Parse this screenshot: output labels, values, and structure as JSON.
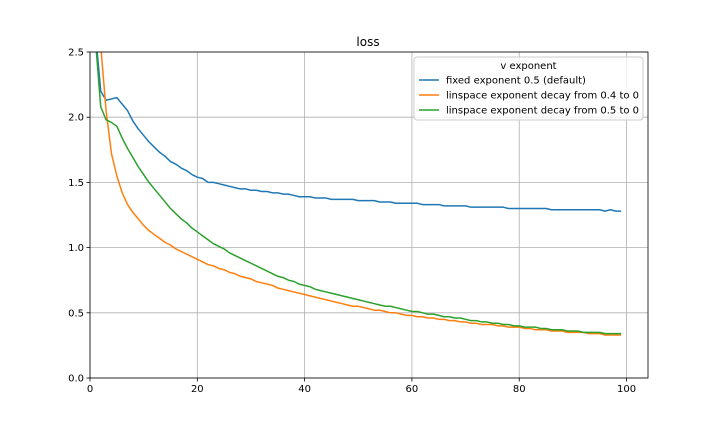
{
  "chart_data": {
    "type": "line",
    "title": "loss",
    "xlabel": "",
    "ylabel": "",
    "xlim": [
      0,
      104
    ],
    "ylim": [
      0,
      2.5
    ],
    "x_ticks": [
      "0",
      "20",
      "40",
      "60",
      "80",
      "100"
    ],
    "y_ticks": [
      "0.0",
      "0.5",
      "1.0",
      "1.5",
      "2.0",
      "2.5"
    ],
    "grid": true,
    "legend": {
      "title": "v exponent",
      "placement": "top-right"
    },
    "x": [
      1,
      2,
      3,
      4,
      5,
      6,
      7,
      8,
      9,
      10,
      11,
      12,
      13,
      14,
      15,
      16,
      17,
      18,
      19,
      20,
      21,
      22,
      23,
      24,
      25,
      26,
      27,
      28,
      29,
      30,
      31,
      32,
      33,
      34,
      35,
      36,
      37,
      38,
      39,
      40,
      41,
      42,
      43,
      44,
      45,
      46,
      47,
      48,
      49,
      50,
      51,
      52,
      53,
      54,
      55,
      56,
      57,
      58,
      59,
      60,
      61,
      62,
      63,
      64,
      65,
      66,
      67,
      68,
      69,
      70,
      71,
      72,
      73,
      74,
      75,
      76,
      77,
      78,
      79,
      80,
      81,
      82,
      83,
      84,
      85,
      86,
      87,
      88,
      89,
      90,
      91,
      92,
      93,
      94,
      95,
      96,
      97,
      98,
      99
    ],
    "series": [
      {
        "name": "fixed exponent 0.5 (default)",
        "color": "#1f77b4",
        "values": [
          2.65,
          2.2,
          2.13,
          2.14,
          2.15,
          2.1,
          2.05,
          1.97,
          1.91,
          1.86,
          1.81,
          1.77,
          1.73,
          1.7,
          1.66,
          1.64,
          1.61,
          1.59,
          1.56,
          1.54,
          1.53,
          1.5,
          1.5,
          1.49,
          1.48,
          1.47,
          1.46,
          1.45,
          1.45,
          1.44,
          1.44,
          1.43,
          1.43,
          1.42,
          1.42,
          1.41,
          1.41,
          1.4,
          1.39,
          1.39,
          1.39,
          1.38,
          1.38,
          1.38,
          1.37,
          1.37,
          1.37,
          1.37,
          1.37,
          1.36,
          1.36,
          1.36,
          1.36,
          1.35,
          1.35,
          1.35,
          1.34,
          1.34,
          1.34,
          1.34,
          1.34,
          1.33,
          1.33,
          1.33,
          1.33,
          1.32,
          1.32,
          1.32,
          1.32,
          1.32,
          1.31,
          1.31,
          1.31,
          1.31,
          1.31,
          1.31,
          1.31,
          1.3,
          1.3,
          1.3,
          1.3,
          1.3,
          1.3,
          1.3,
          1.3,
          1.29,
          1.29,
          1.29,
          1.29,
          1.29,
          1.29,
          1.29,
          1.29,
          1.29,
          1.29,
          1.28,
          1.29,
          1.28,
          1.28
        ]
      },
      {
        "name": "linspace exponent decay from 0.4 to 0",
        "color": "#ff7f0e",
        "values": [
          3.2,
          2.55,
          2.05,
          1.72,
          1.55,
          1.42,
          1.33,
          1.27,
          1.22,
          1.17,
          1.13,
          1.1,
          1.07,
          1.04,
          1.02,
          0.99,
          0.97,
          0.95,
          0.93,
          0.91,
          0.89,
          0.87,
          0.86,
          0.84,
          0.83,
          0.81,
          0.8,
          0.78,
          0.77,
          0.76,
          0.74,
          0.73,
          0.72,
          0.71,
          0.69,
          0.68,
          0.67,
          0.66,
          0.65,
          0.64,
          0.63,
          0.62,
          0.61,
          0.6,
          0.59,
          0.58,
          0.57,
          0.56,
          0.55,
          0.55,
          0.54,
          0.53,
          0.52,
          0.52,
          0.51,
          0.5,
          0.5,
          0.49,
          0.48,
          0.48,
          0.47,
          0.47,
          0.46,
          0.46,
          0.45,
          0.45,
          0.44,
          0.44,
          0.43,
          0.43,
          0.42,
          0.42,
          0.41,
          0.41,
          0.41,
          0.4,
          0.4,
          0.39,
          0.39,
          0.39,
          0.38,
          0.38,
          0.37,
          0.37,
          0.37,
          0.36,
          0.36,
          0.36,
          0.35,
          0.35,
          0.35,
          0.35,
          0.34,
          0.34,
          0.34,
          0.33,
          0.33,
          0.33,
          0.33
        ]
      },
      {
        "name": "linspace exponent decay from 0.5 to 0",
        "color": "#2ca02c",
        "values": [
          2.6,
          2.08,
          1.98,
          1.96,
          1.93,
          1.84,
          1.76,
          1.69,
          1.62,
          1.56,
          1.5,
          1.45,
          1.4,
          1.35,
          1.3,
          1.26,
          1.22,
          1.19,
          1.15,
          1.12,
          1.09,
          1.06,
          1.03,
          1.01,
          0.99,
          0.96,
          0.94,
          0.92,
          0.9,
          0.88,
          0.86,
          0.84,
          0.82,
          0.8,
          0.78,
          0.77,
          0.75,
          0.74,
          0.72,
          0.71,
          0.7,
          0.68,
          0.67,
          0.66,
          0.65,
          0.64,
          0.63,
          0.62,
          0.61,
          0.6,
          0.59,
          0.58,
          0.57,
          0.56,
          0.55,
          0.55,
          0.54,
          0.53,
          0.52,
          0.51,
          0.51,
          0.5,
          0.49,
          0.49,
          0.48,
          0.47,
          0.47,
          0.46,
          0.46,
          0.45,
          0.44,
          0.44,
          0.43,
          0.43,
          0.42,
          0.42,
          0.41,
          0.41,
          0.4,
          0.4,
          0.39,
          0.39,
          0.39,
          0.38,
          0.38,
          0.37,
          0.37,
          0.37,
          0.36,
          0.36,
          0.36,
          0.35,
          0.35,
          0.35,
          0.35,
          0.34,
          0.34,
          0.34,
          0.34
        ]
      }
    ]
  }
}
